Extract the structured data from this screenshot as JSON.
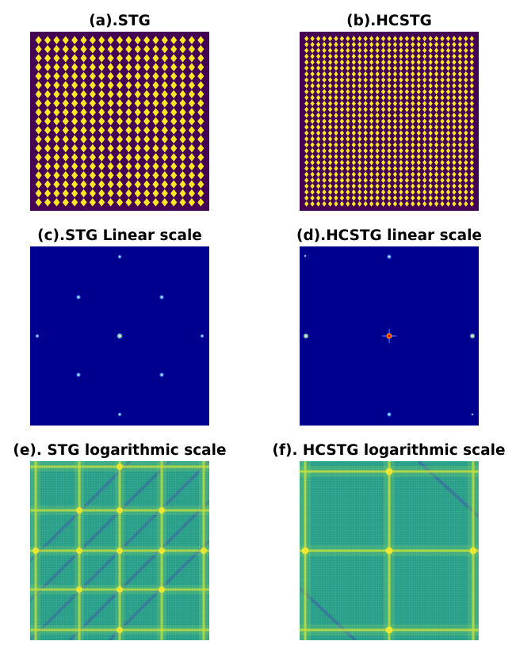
{
  "panels": [
    {
      "id": "a",
      "title": "(a).STG",
      "kind": "grating",
      "pattern": "sparse",
      "cells": 19
    },
    {
      "id": "b",
      "title": "(b).HCSTG",
      "kind": "grating",
      "pattern": "dense",
      "cells": 29
    },
    {
      "id": "c",
      "title": "(c).STG Linear scale",
      "kind": "spectrum",
      "pattern": "stg"
    },
    {
      "id": "d",
      "title": "(d).HCSTG linear scale",
      "kind": "spectrum",
      "pattern": "hcstg"
    },
    {
      "id": "e",
      "title": "(e). STG logarithmic scale",
      "kind": "logspectrum",
      "pattern": "stg"
    },
    {
      "id": "f",
      "title": "(f). HCSTG  logarithmic scale",
      "kind": "logspectrum",
      "pattern": "hcstg"
    }
  ],
  "colors": {
    "viridis_dark": "#440154",
    "viridis_yellow": "#fde725",
    "jet_background": "#00008f",
    "log_base": "#2a9a8a",
    "log_line": "#c8e03a"
  }
}
